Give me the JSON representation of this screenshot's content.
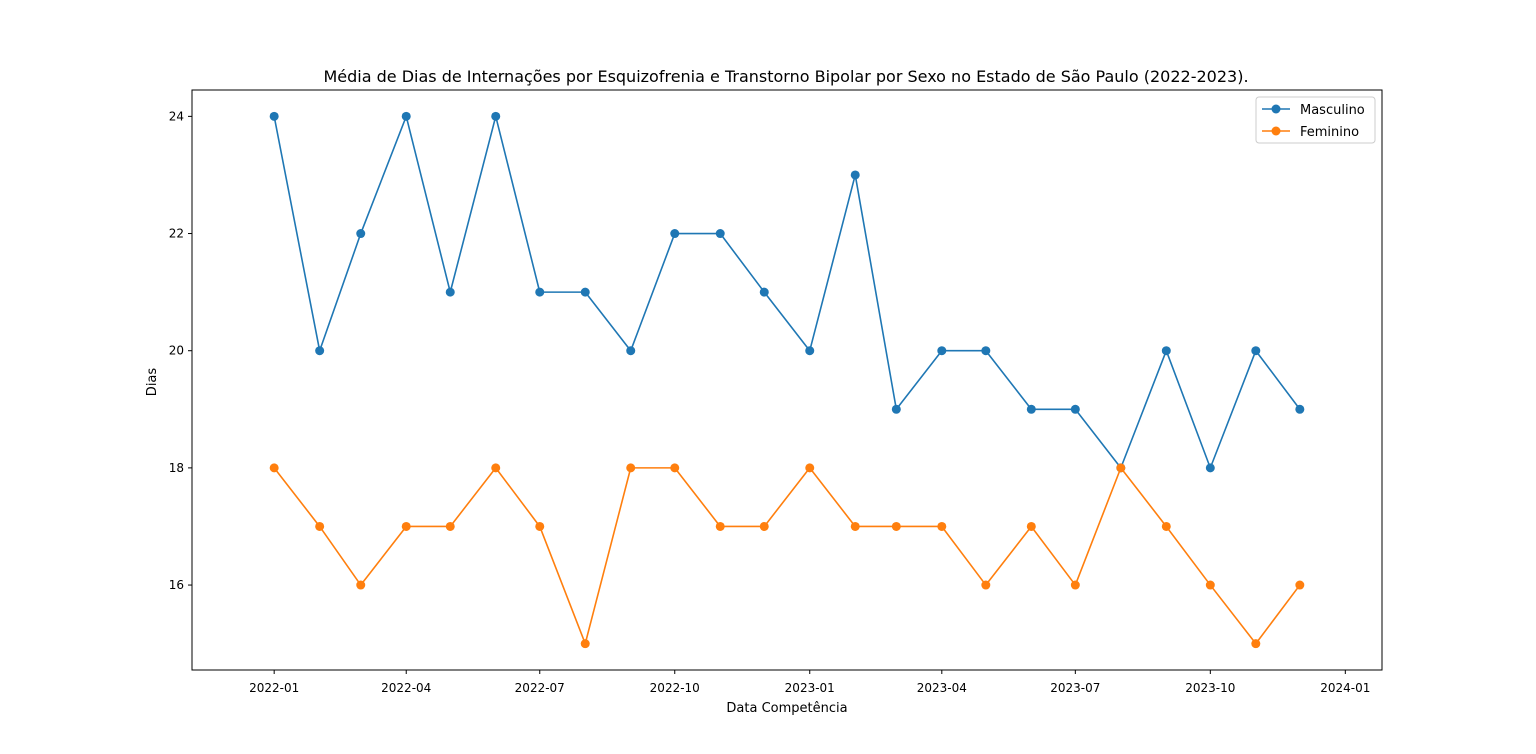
{
  "chart_data": {
    "type": "line",
    "title": "Média de Dias de Internações por Esquizofrenia e Transtorno Bipolar por Sexo no Estado de São Paulo (2022-2023).",
    "xlabel": "Data Competência",
    "ylabel": "Dias",
    "x": [
      "2022-01",
      "2022-02",
      "2022-03",
      "2022-04",
      "2022-05",
      "2022-06",
      "2022-07",
      "2022-08",
      "2022-09",
      "2022-10",
      "2022-11",
      "2022-12",
      "2023-01",
      "2023-02",
      "2023-03",
      "2023-04",
      "2023-05",
      "2023-06",
      "2023-07",
      "2023-08",
      "2023-09",
      "2023-10",
      "2023-11",
      "2023-12"
    ],
    "series": [
      {
        "name": "Masculino",
        "color": "#1f77b4",
        "marker": "circle",
        "values": [
          24,
          20,
          22,
          24,
          21,
          24,
          21,
          21,
          20,
          22,
          22,
          21,
          20,
          23,
          19,
          20,
          20,
          19,
          19,
          18,
          20,
          18,
          20,
          19
        ]
      },
      {
        "name": "Feminino",
        "color": "#ff7f0e",
        "marker": "circle",
        "values": [
          18,
          17,
          16,
          17,
          17,
          18,
          17,
          15,
          18,
          18,
          17,
          17,
          18,
          17,
          17,
          17,
          16,
          17,
          16,
          18,
          17,
          16,
          15,
          16
        ]
      }
    ],
    "xlim": [
      "2021-11-06",
      "2024-01-26"
    ],
    "ylim": [
      14.55,
      24.45
    ],
    "xticks": [
      "2022-01",
      "2022-04",
      "2022-07",
      "2022-10",
      "2023-01",
      "2023-04",
      "2023-07",
      "2023-10",
      "2024-01"
    ],
    "yticks": [
      16,
      18,
      20,
      22,
      24
    ],
    "grid": false,
    "legend": "upper right"
  }
}
